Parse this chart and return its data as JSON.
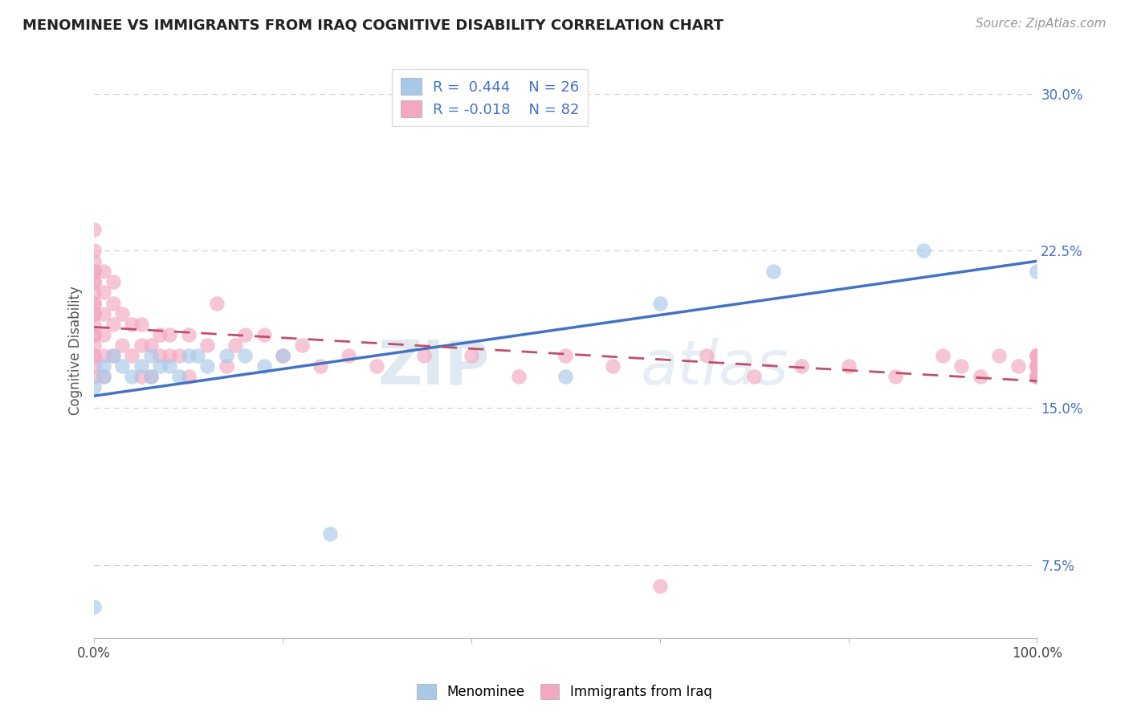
{
  "title": "MENOMINEE VS IMMIGRANTS FROM IRAQ COGNITIVE DISABILITY CORRELATION CHART",
  "source_text": "Source: ZipAtlas.com",
  "ylabel": "Cognitive Disability",
  "xlim": [
    0,
    1.0
  ],
  "ylim": [
    0.04,
    0.315
  ],
  "yticks": [
    0.075,
    0.15,
    0.225,
    0.3
  ],
  "ytick_labels": [
    "7.5%",
    "15.0%",
    "22.5%",
    "30.0%"
  ],
  "legend_r1": "R =  0.444",
  "legend_n1": "N = 26",
  "legend_r2": "R = -0.018",
  "legend_n2": "N = 82",
  "color_blue": "#A8C8E8",
  "color_pink": "#F4A8C0",
  "color_blue_line": "#4472C4",
  "color_pink_line": "#C0506A",
  "color_grid": "#CCCCCC",
  "watermark_zip": "ZIP",
  "watermark_atlas": "atlas",
  "menominee_x": [
    0.0,
    0.0,
    0.01,
    0.01,
    0.02,
    0.03,
    0.04,
    0.05,
    0.06,
    0.06,
    0.07,
    0.08,
    0.09,
    0.1,
    0.11,
    0.12,
    0.14,
    0.16,
    0.18,
    0.2,
    0.25,
    0.5,
    0.6,
    0.72,
    0.88,
    1.0
  ],
  "menominee_y": [
    0.055,
    0.16,
    0.165,
    0.17,
    0.175,
    0.17,
    0.165,
    0.17,
    0.165,
    0.175,
    0.17,
    0.17,
    0.165,
    0.175,
    0.175,
    0.17,
    0.175,
    0.175,
    0.17,
    0.175,
    0.09,
    0.165,
    0.2,
    0.215,
    0.225,
    0.215
  ],
  "iraq_x": [
    0.0,
    0.0,
    0.0,
    0.0,
    0.0,
    0.0,
    0.0,
    0.0,
    0.0,
    0.0,
    0.0,
    0.0,
    0.0,
    0.0,
    0.0,
    0.0,
    0.0,
    0.0,
    0.0,
    0.0,
    0.01,
    0.01,
    0.01,
    0.01,
    0.01,
    0.01,
    0.02,
    0.02,
    0.02,
    0.02,
    0.03,
    0.03,
    0.04,
    0.04,
    0.05,
    0.05,
    0.05,
    0.06,
    0.06,
    0.07,
    0.07,
    0.08,
    0.08,
    0.09,
    0.1,
    0.1,
    0.12,
    0.13,
    0.14,
    0.15,
    0.16,
    0.18,
    0.2,
    0.22,
    0.24,
    0.27,
    0.3,
    0.35,
    0.4,
    0.45,
    0.5,
    0.55,
    0.6,
    0.65,
    0.7,
    0.75,
    0.8,
    0.85,
    0.9,
    0.92,
    0.94,
    0.96,
    0.98,
    1.0,
    1.0,
    1.0,
    1.0,
    1.0,
    1.0,
    1.0,
    1.0,
    1.0
  ],
  "iraq_y": [
    0.235,
    0.225,
    0.22,
    0.215,
    0.21,
    0.2,
    0.195,
    0.19,
    0.185,
    0.18,
    0.175,
    0.215,
    0.21,
    0.205,
    0.2,
    0.195,
    0.185,
    0.175,
    0.17,
    0.165,
    0.215,
    0.205,
    0.195,
    0.185,
    0.175,
    0.165,
    0.21,
    0.2,
    0.19,
    0.175,
    0.195,
    0.18,
    0.19,
    0.175,
    0.19,
    0.18,
    0.165,
    0.18,
    0.165,
    0.185,
    0.175,
    0.185,
    0.175,
    0.175,
    0.185,
    0.165,
    0.18,
    0.2,
    0.17,
    0.18,
    0.185,
    0.185,
    0.175,
    0.18,
    0.17,
    0.175,
    0.17,
    0.175,
    0.175,
    0.165,
    0.175,
    0.17,
    0.065,
    0.175,
    0.165,
    0.17,
    0.17,
    0.165,
    0.175,
    0.17,
    0.165,
    0.175,
    0.17,
    0.175,
    0.165,
    0.175,
    0.17,
    0.165,
    0.175,
    0.17,
    0.165,
    0.17
  ]
}
